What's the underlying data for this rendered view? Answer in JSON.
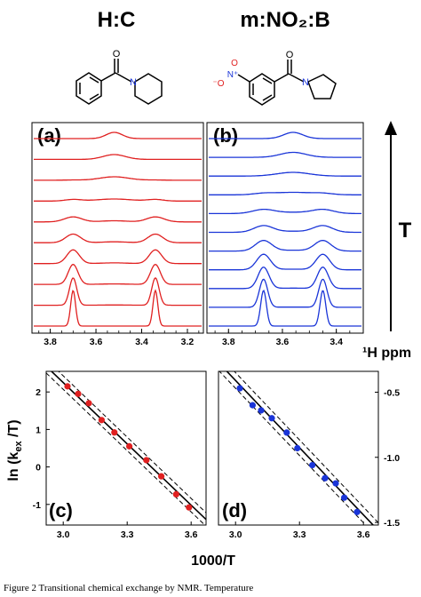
{
  "header": {
    "left_compound": "H:C",
    "right_compound": "m:NO₂:B"
  },
  "colors": {
    "left": "#e02020",
    "right": "#1a35d8",
    "nitro_red": "#e02020",
    "nitro_blue": "#1a35d8"
  },
  "chart_data": [
    {
      "panel": "(a)",
      "type": "line",
      "description_key": "stacked NMR spectra",
      "x_ticks": [
        "3.8",
        "3.6",
        "3.4",
        "3.2"
      ],
      "xlim": [
        3.88,
        3.13
      ],
      "spectra_count": 10,
      "peak_positions_ppm": [
        3.7,
        3.34
      ],
      "coalesced_peak_ppm": 3.52
    },
    {
      "panel": "(b)",
      "type": "line",
      "x_ticks": [
        "3.8",
        "3.6",
        "3.4"
      ],
      "xlim": [
        3.88,
        3.3
      ],
      "spectra_count": 11,
      "peak_positions_ppm": [
        3.67,
        3.45
      ],
      "coalesced_peak_ppm": 3.56,
      "xlabel": "¹H ppm",
      "arrow_label": "T"
    },
    {
      "panel": "(c)",
      "type": "scatter",
      "x": [
        3.02,
        3.07,
        3.12,
        3.18,
        3.24,
        3.31,
        3.39,
        3.46,
        3.53,
        3.59
      ],
      "y": [
        2.15,
        1.95,
        1.7,
        1.25,
        0.92,
        0.55,
        0.18,
        -0.25,
        -0.73,
        -1.08
      ],
      "fit": {
        "slope": -5.45,
        "intercept": 18.6
      },
      "x_ticks": [
        "3.0",
        "3.3",
        "3.6"
      ],
      "y_ticks": [
        "2",
        "1",
        "0",
        "-1"
      ],
      "xlim": [
        2.92,
        3.67
      ],
      "ylim": [
        -1.55,
        2.55
      ],
      "ylabel": "ln (kex /T)",
      "xlabel": "1000/T"
    },
    {
      "panel": "(d)",
      "type": "scatter",
      "x": [
        3.02,
        3.08,
        3.12,
        3.17,
        3.24,
        3.29,
        3.36,
        3.42,
        3.47,
        3.51,
        3.57
      ],
      "y": [
        -0.47,
        -0.6,
        -0.64,
        -0.7,
        -0.81,
        -0.93,
        -1.06,
        -1.16,
        -1.2,
        -1.31,
        -1.42
      ],
      "fit": {
        "slope": -1.72,
        "intercept": 4.75
      },
      "x_ticks": [
        "3.0",
        "3.3",
        "3.6"
      ],
      "y_ticks": [
        "-0.5",
        "-1.0",
        "-1.5"
      ],
      "xlim": [
        2.92,
        3.67
      ],
      "ylim": [
        -1.52,
        -0.34
      ]
    }
  ],
  "caption": "Figure 2   Transitional chemical exchange by NMR. Temperature"
}
